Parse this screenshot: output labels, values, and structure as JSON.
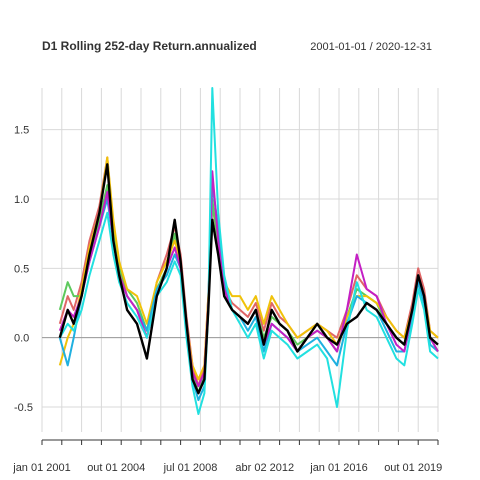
{
  "chart_data": {
    "type": "line",
    "title": "D1 Rolling 252-day Return.annualized",
    "date_range": "2001-01-01 / 2020-12-31",
    "ylim": [
      -0.68,
      1.8
    ],
    "y_ticks": [
      -0.5,
      0.0,
      0.5,
      1.0,
      1.5
    ],
    "y_tick_labels": [
      "-0.5",
      "0.0",
      "0.5",
      "1.0",
      "1.5"
    ],
    "x_ticks": [
      2001.0,
      2004.75,
      2008.5,
      2012.25,
      2016.0,
      2019.75
    ],
    "x_tick_labels": [
      "jan 01 2001",
      "out 01 2004",
      "jul 01 2008",
      "abr 02 2012",
      "jan 01 2016",
      "out 01 2019"
    ],
    "xlim": [
      2001.0,
      2021.0
    ],
    "grid": true,
    "zero_line": true,
    "series": [
      {
        "color": "#000000",
        "x": [
          2001.9,
          2002.3,
          2002.6,
          2003.0,
          2003.4,
          2003.9,
          2004.3,
          2004.6,
          2004.9,
          2005.3,
          2005.8,
          2006.3,
          2006.8,
          2007.3,
          2007.7,
          2008.0,
          2008.3,
          2008.6,
          2008.9,
          2009.2,
          2009.4,
          2009.6,
          2009.9,
          2010.2,
          2010.6,
          2011.0,
          2011.4,
          2011.8,
          2012.2,
          2012.6,
          2013.0,
          2013.4,
          2013.9,
          2014.4,
          2014.9,
          2015.4,
          2015.9,
          2016.4,
          2016.9,
          2017.4,
          2017.9,
          2018.4,
          2018.9,
          2019.3,
          2019.7,
          2020.0,
          2020.3,
          2020.6,
          2021.0
        ],
        "values": [
          0.0,
          0.2,
          0.1,
          0.3,
          0.6,
          0.9,
          1.25,
          0.7,
          0.45,
          0.2,
          0.1,
          -0.15,
          0.3,
          0.5,
          0.85,
          0.55,
          0.1,
          -0.3,
          -0.4,
          -0.3,
          0.2,
          0.85,
          0.6,
          0.3,
          0.2,
          0.15,
          0.1,
          0.2,
          -0.05,
          0.2,
          0.1,
          0.05,
          -0.1,
          0.0,
          0.1,
          0.0,
          -0.05,
          0.1,
          0.15,
          0.25,
          0.2,
          0.1,
          0.0,
          -0.05,
          0.2,
          0.45,
          0.3,
          0.0,
          -0.05
        ]
      },
      {
        "color": "#e06666",
        "x": [
          2001.9,
          2002.3,
          2002.6,
          2003.0,
          2003.4,
          2003.9,
          2004.3,
          2004.6,
          2004.9,
          2005.3,
          2005.8,
          2006.3,
          2006.8,
          2007.3,
          2007.7,
          2008.0,
          2008.3,
          2008.6,
          2008.9,
          2009.2,
          2009.4,
          2009.6,
          2009.9,
          2010.2,
          2010.6,
          2011.0,
          2011.4,
          2011.8,
          2012.2,
          2012.6,
          2013.0,
          2013.4,
          2013.9,
          2014.4,
          2014.9,
          2015.4,
          2015.9,
          2016.4,
          2016.9,
          2017.4,
          2017.9,
          2018.4,
          2018.9,
          2019.3,
          2019.7,
          2020.0,
          2020.3,
          2020.6,
          2021.0
        ],
        "values": [
          0.1,
          0.3,
          0.2,
          0.4,
          0.7,
          0.95,
          1.3,
          0.8,
          0.5,
          0.3,
          0.2,
          0.0,
          0.4,
          0.6,
          0.8,
          0.6,
          0.15,
          -0.2,
          -0.35,
          -0.2,
          0.3,
          0.95,
          0.7,
          0.35,
          0.25,
          0.2,
          0.15,
          0.25,
          0.05,
          0.25,
          0.15,
          0.1,
          0.0,
          0.05,
          0.1,
          0.05,
          0.0,
          0.2,
          0.45,
          0.35,
          0.3,
          0.15,
          0.05,
          0.0,
          0.25,
          0.5,
          0.35,
          0.05,
          0.0
        ]
      },
      {
        "color": "#5dc95d",
        "x": [
          2001.9,
          2002.3,
          2002.6,
          2003.0,
          2003.4,
          2003.9,
          2004.3,
          2004.6,
          2004.9,
          2005.3,
          2005.8,
          2006.3,
          2006.8,
          2007.3,
          2007.7,
          2008.0,
          2008.3,
          2008.6,
          2008.9,
          2009.2,
          2009.4,
          2009.6,
          2009.9,
          2010.2,
          2010.6,
          2011.0,
          2011.4,
          2011.8,
          2012.2,
          2012.6,
          2013.0,
          2013.4,
          2013.9,
          2014.4,
          2014.9,
          2015.4,
          2015.9,
          2016.4,
          2016.9,
          2017.4,
          2017.9,
          2018.4,
          2018.9,
          2019.3,
          2019.7,
          2020.0,
          2020.3,
          2020.6,
          2021.0
        ],
        "values": [
          0.2,
          0.4,
          0.3,
          0.3,
          0.6,
          0.85,
          1.1,
          0.75,
          0.5,
          0.35,
          0.25,
          0.05,
          0.35,
          0.5,
          0.75,
          0.5,
          0.1,
          -0.25,
          -0.4,
          -0.25,
          0.25,
          1.0,
          0.65,
          0.3,
          0.2,
          0.15,
          0.1,
          0.2,
          0.0,
          0.15,
          0.1,
          0.05,
          -0.05,
          0.0,
          0.05,
          0.0,
          -0.1,
          0.15,
          0.35,
          0.3,
          0.25,
          0.1,
          0.0,
          -0.05,
          0.2,
          0.45,
          0.3,
          0.0,
          -0.1
        ]
      },
      {
        "color": "#f0c20a",
        "x": [
          2001.9,
          2002.3,
          2002.6,
          2003.0,
          2003.4,
          2003.9,
          2004.3,
          2004.6,
          2004.9,
          2005.3,
          2005.8,
          2006.3,
          2006.8,
          2007.3,
          2007.7,
          2008.0,
          2008.3,
          2008.6,
          2008.9,
          2009.2,
          2009.4,
          2009.6,
          2009.9,
          2010.2,
          2010.6,
          2011.0,
          2011.4,
          2011.8,
          2012.2,
          2012.6,
          2013.0,
          2013.4,
          2013.9,
          2014.4,
          2014.9,
          2015.4,
          2015.9,
          2016.4,
          2016.9,
          2017.4,
          2017.9,
          2018.4,
          2018.9,
          2019.3,
          2019.7,
          2020.0,
          2020.3,
          2020.6,
          2021.0
        ],
        "values": [
          -0.2,
          0.0,
          0.1,
          0.35,
          0.65,
          0.9,
          1.3,
          0.85,
          0.55,
          0.35,
          0.3,
          0.1,
          0.4,
          0.55,
          0.7,
          0.55,
          0.1,
          -0.2,
          -0.3,
          -0.2,
          0.3,
          0.85,
          0.6,
          0.4,
          0.3,
          0.3,
          0.2,
          0.3,
          0.1,
          0.3,
          0.2,
          0.1,
          0.0,
          0.05,
          0.1,
          0.05,
          -0.05,
          0.15,
          0.3,
          0.3,
          0.25,
          0.15,
          0.05,
          0.0,
          0.2,
          0.4,
          0.3,
          0.05,
          0.0
        ]
      },
      {
        "color": "#1fb0e0",
        "x": [
          2001.9,
          2002.3,
          2002.6,
          2003.0,
          2003.4,
          2003.9,
          2004.3,
          2004.6,
          2004.9,
          2005.3,
          2005.8,
          2006.3,
          2006.8,
          2007.3,
          2007.7,
          2008.0,
          2008.3,
          2008.6,
          2008.9,
          2009.2,
          2009.4,
          2009.6,
          2009.9,
          2010.2,
          2010.6,
          2011.0,
          2011.4,
          2011.8,
          2012.2,
          2012.6,
          2013.0,
          2013.4,
          2013.9,
          2014.4,
          2014.9,
          2015.4,
          2015.9,
          2016.4,
          2016.9,
          2017.4,
          2017.9,
          2018.4,
          2018.9,
          2019.3,
          2019.7,
          2020.0,
          2020.3,
          2020.6,
          2021.0
        ],
        "values": [
          0.0,
          -0.2,
          0.0,
          0.3,
          0.55,
          0.8,
          1.0,
          0.7,
          0.45,
          0.3,
          0.2,
          0.05,
          0.35,
          0.45,
          0.6,
          0.5,
          0.05,
          -0.3,
          -0.45,
          -0.35,
          0.2,
          1.1,
          0.8,
          0.4,
          0.2,
          0.15,
          0.05,
          0.15,
          -0.1,
          0.1,
          0.05,
          0.0,
          -0.1,
          -0.05,
          0.0,
          -0.1,
          -0.2,
          0.1,
          0.3,
          0.25,
          0.2,
          0.05,
          -0.1,
          -0.1,
          0.15,
          0.4,
          0.25,
          -0.05,
          -0.1
        ]
      },
      {
        "color": "#c41fc4",
        "x": [
          2001.9,
          2002.3,
          2002.6,
          2003.0,
          2003.4,
          2003.9,
          2004.3,
          2004.6,
          2004.9,
          2005.3,
          2005.8,
          2006.3,
          2006.8,
          2007.3,
          2007.7,
          2008.0,
          2008.3,
          2008.6,
          2008.9,
          2009.2,
          2009.4,
          2009.6,
          2009.9,
          2010.2,
          2010.6,
          2011.0,
          2011.4,
          2011.8,
          2012.2,
          2012.6,
          2013.0,
          2013.4,
          2013.9,
          2014.4,
          2014.9,
          2015.4,
          2015.9,
          2016.4,
          2016.9,
          2017.4,
          2017.9,
          2018.4,
          2018.9,
          2019.3,
          2019.7,
          2020.0,
          2020.3,
          2020.6,
          2021.0
        ],
        "values": [
          0.05,
          0.2,
          0.15,
          0.3,
          0.55,
          0.8,
          1.05,
          0.7,
          0.45,
          0.3,
          0.2,
          0.0,
          0.3,
          0.5,
          0.65,
          0.5,
          0.1,
          -0.25,
          -0.35,
          -0.25,
          0.25,
          1.2,
          0.7,
          0.35,
          0.2,
          0.15,
          0.1,
          0.2,
          -0.05,
          0.1,
          0.05,
          0.0,
          -0.1,
          0.0,
          0.05,
          0.0,
          -0.1,
          0.2,
          0.6,
          0.35,
          0.3,
          0.1,
          -0.05,
          -0.1,
          0.2,
          0.45,
          0.3,
          0.0,
          -0.1
        ]
      },
      {
        "color": "#22e0e0",
        "x": [
          2001.9,
          2002.3,
          2002.6,
          2003.0,
          2003.4,
          2003.9,
          2004.3,
          2004.6,
          2004.9,
          2005.3,
          2005.8,
          2006.3,
          2006.8,
          2007.3,
          2007.7,
          2008.0,
          2008.3,
          2008.6,
          2008.9,
          2009.2,
          2009.4,
          2009.6,
          2009.9,
          2010.2,
          2010.6,
          2011.0,
          2011.4,
          2011.8,
          2012.2,
          2012.6,
          2013.0,
          2013.4,
          2013.9,
          2014.4,
          2014.9,
          2015.4,
          2015.9,
          2016.4,
          2016.9,
          2017.4,
          2017.9,
          2018.4,
          2018.9,
          2019.3,
          2019.7,
          2020.0,
          2020.3,
          2020.6,
          2021.0
        ],
        "values": [
          0.0,
          0.1,
          0.05,
          0.2,
          0.45,
          0.7,
          0.9,
          0.6,
          0.4,
          0.25,
          0.15,
          0.0,
          0.3,
          0.4,
          0.55,
          0.45,
          0.0,
          -0.35,
          -0.55,
          -0.4,
          0.2,
          1.8,
          0.9,
          0.45,
          0.2,
          0.1,
          0.0,
          0.1,
          -0.15,
          0.05,
          0.0,
          -0.05,
          -0.15,
          -0.1,
          -0.05,
          -0.15,
          -0.5,
          0.05,
          0.4,
          0.2,
          0.15,
          0.0,
          -0.15,
          -0.2,
          0.1,
          0.35,
          0.2,
          -0.1,
          -0.15
        ]
      }
    ]
  }
}
